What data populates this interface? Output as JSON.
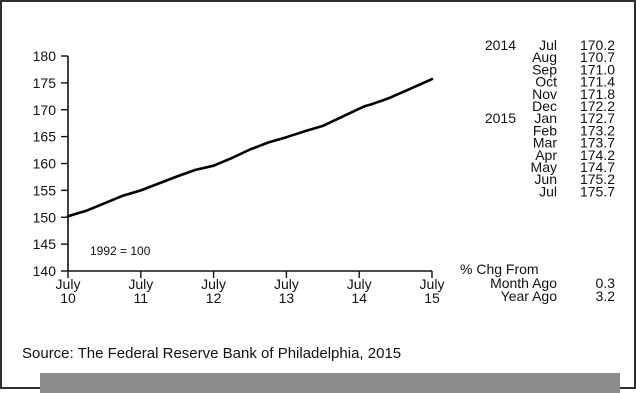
{
  "chart_data": {
    "type": "line",
    "title": "",
    "xlabel": "",
    "ylabel": "",
    "base_note": "1992 = 100",
    "x_ticks": [
      {
        "date": "2010-07",
        "line1": "July",
        "line2": "10"
      },
      {
        "date": "2011-07",
        "line1": "July",
        "line2": "11"
      },
      {
        "date": "2012-07",
        "line1": "July",
        "line2": "12"
      },
      {
        "date": "2013-07",
        "line1": "July",
        "line2": "13"
      },
      {
        "date": "2014-07",
        "line1": "July",
        "line2": "14"
      },
      {
        "date": "2015-07",
        "line1": "July",
        "line2": "15"
      }
    ],
    "ylim": [
      140,
      180
    ],
    "y_ticks": [
      140,
      145,
      150,
      155,
      160,
      165,
      170,
      175,
      180
    ],
    "grid": false,
    "series": [
      {
        "color": "#000000",
        "points": [
          {
            "x": "2010-07",
            "y": 150.2
          },
          {
            "x": "2010-10",
            "y": 151.2
          },
          {
            "x": "2011-01",
            "y": 152.6
          },
          {
            "x": "2011-04",
            "y": 154.0
          },
          {
            "x": "2011-07",
            "y": 155.0
          },
          {
            "x": "2011-10",
            "y": 156.3
          },
          {
            "x": "2012-01",
            "y": 157.6
          },
          {
            "x": "2012-04",
            "y": 158.8
          },
          {
            "x": "2012-07",
            "y": 159.6
          },
          {
            "x": "2012-10",
            "y": 161.0
          },
          {
            "x": "2013-01",
            "y": 162.6
          },
          {
            "x": "2013-04",
            "y": 163.9
          },
          {
            "x": "2013-07",
            "y": 164.9
          },
          {
            "x": "2013-10",
            "y": 166.0
          },
          {
            "x": "2014-01",
            "y": 167.0
          },
          {
            "x": "2014-04",
            "y": 168.6
          },
          {
            "x": "2014-07",
            "y": 170.2
          },
          {
            "x": "2014-08",
            "y": 170.7
          },
          {
            "x": "2014-09",
            "y": 171.0
          },
          {
            "x": "2014-10",
            "y": 171.4
          },
          {
            "x": "2014-11",
            "y": 171.8
          },
          {
            "x": "2014-12",
            "y": 172.2
          },
          {
            "x": "2015-01",
            "y": 172.7
          },
          {
            "x": "2015-02",
            "y": 173.2
          },
          {
            "x": "2015-03",
            "y": 173.7
          },
          {
            "x": "2015-04",
            "y": 174.2
          },
          {
            "x": "2015-05",
            "y": 174.7
          },
          {
            "x": "2015-06",
            "y": 175.2
          },
          {
            "x": "2015-07",
            "y": 175.7
          }
        ]
      }
    ],
    "data_table": {
      "rows": [
        {
          "year": "2014",
          "month": "Jul",
          "value": "170.2"
        },
        {
          "year": "",
          "month": "Aug",
          "value": "170.7"
        },
        {
          "year": "",
          "month": "Sep",
          "value": "171.0"
        },
        {
          "year": "",
          "month": "Oct",
          "value": "171.4"
        },
        {
          "year": "",
          "month": "Nov",
          "value": "171.8"
        },
        {
          "year": "",
          "month": "Dec",
          "value": "172.2"
        },
        {
          "year": "2015",
          "month": "Jan",
          "value": "172.7"
        },
        {
          "year": "",
          "month": "Feb",
          "value": "173.2"
        },
        {
          "year": "",
          "month": "Mar",
          "value": "173.7"
        },
        {
          "year": "",
          "month": "Apr",
          "value": "174.2"
        },
        {
          "year": "",
          "month": "May",
          "value": "174.7"
        },
        {
          "year": "",
          "month": "Jun",
          "value": "175.2"
        },
        {
          "year": "",
          "month": "Jul",
          "value": "175.7"
        }
      ],
      "change_header": "% Chg From",
      "changes": [
        {
          "label": "Month Ago",
          "value": "0.3"
        },
        {
          "label": "Year Ago",
          "value": "3.2"
        }
      ]
    }
  },
  "source": "Source:  The Federal Reserve Bank of Philadelphia, 2015",
  "colors": {
    "line": "#000000",
    "border": "#2f2f2f",
    "footer_bar": "#8d8d8d"
  }
}
